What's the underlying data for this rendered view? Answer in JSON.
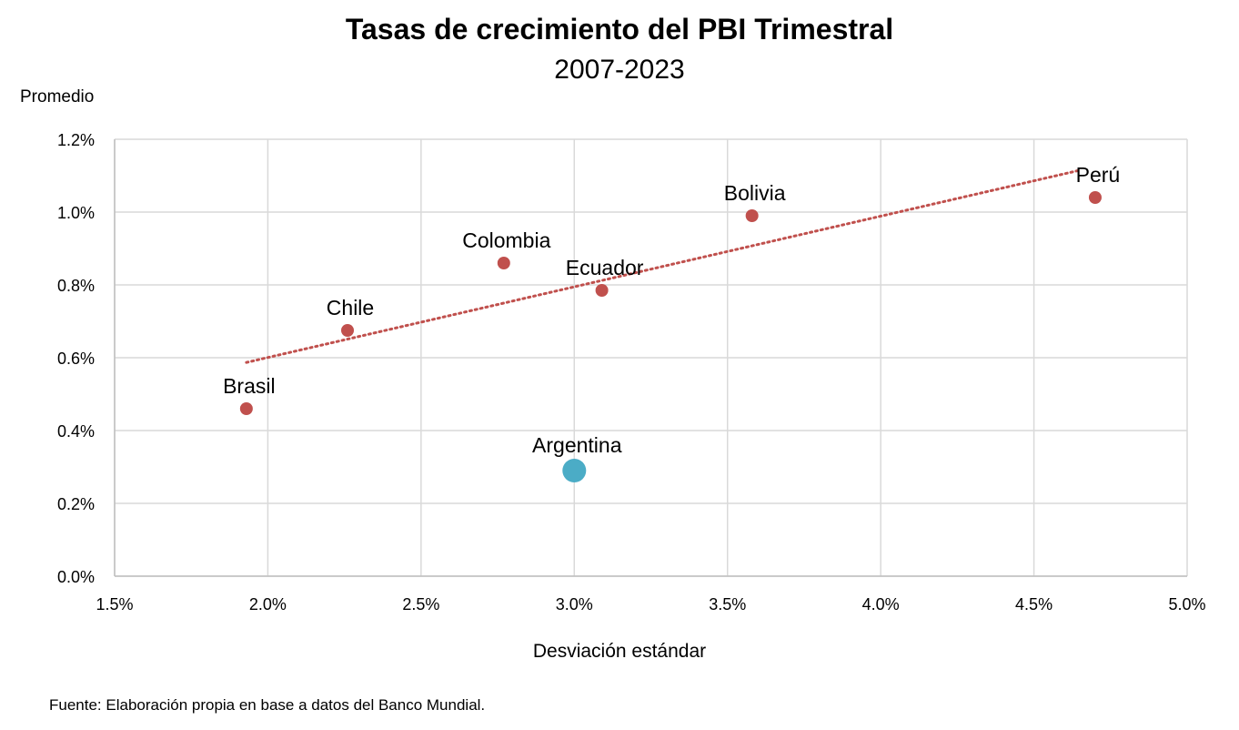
{
  "chart_data": {
    "type": "scatter",
    "title": "Tasas de crecimiento del PBI Trimestral",
    "subtitle": "2007-2023",
    "xlabel": "Desviación estándar",
    "ylabel": "Promedio",
    "xlim": [
      1.5,
      5.0
    ],
    "ylim": [
      0.0,
      1.2
    ],
    "x_ticks": [
      1.5,
      2.0,
      2.5,
      3.0,
      3.5,
      4.0,
      4.5,
      5.0
    ],
    "y_ticks": [
      0.0,
      0.2,
      0.4,
      0.6,
      0.8,
      1.0,
      1.2
    ],
    "x_tick_labels": [
      "1.5%",
      "2.0%",
      "2.5%",
      "3.0%",
      "3.5%",
      "4.0%",
      "4.5%",
      "5.0%"
    ],
    "y_tick_labels": [
      "0.0%",
      "0.2%",
      "0.4%",
      "0.6%",
      "0.8%",
      "1.0%",
      "1.2%"
    ],
    "grid": true,
    "points": [
      {
        "label": "Brasil",
        "x": 1.93,
        "y": 0.46,
        "color": "#c0504d"
      },
      {
        "label": "Chile",
        "x": 2.26,
        "y": 0.675,
        "color": "#c0504d"
      },
      {
        "label": "Colombia",
        "x": 2.77,
        "y": 0.86,
        "color": "#c0504d"
      },
      {
        "label": "Ecuador",
        "x": 3.09,
        "y": 0.785,
        "color": "#c0504d"
      },
      {
        "label": "Bolivia",
        "x": 3.58,
        "y": 0.99,
        "color": "#c0504d"
      },
      {
        "label": "Perú",
        "x": 4.7,
        "y": 1.04,
        "color": "#c0504d"
      },
      {
        "label": "Argentina",
        "x": 3.0,
        "y": 0.29,
        "color": "#4bacc6",
        "highlight": true
      }
    ],
    "trendline": {
      "type": "linear",
      "style": "dotted",
      "color": "#c0504d",
      "x_start": 1.93,
      "y_start": 0.587,
      "x_end": 4.65,
      "y_end": 1.115
    }
  },
  "source": "Fuente: Elaboración propia en base a datos del Banco Mundial."
}
